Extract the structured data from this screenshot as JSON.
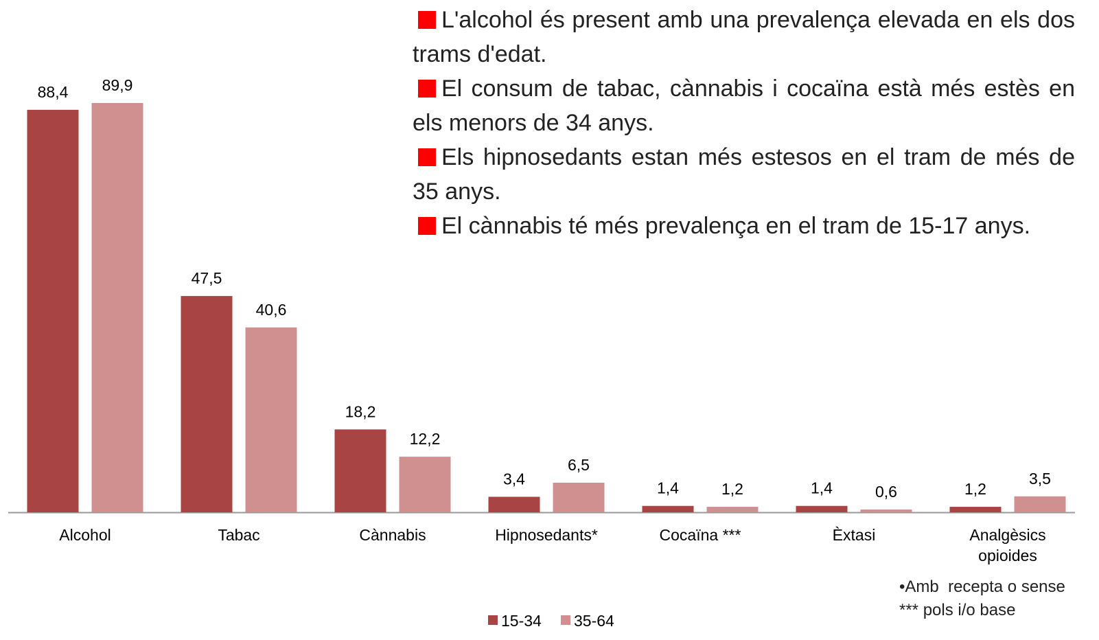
{
  "chart_data": {
    "type": "bar",
    "categories": [
      "Alcohol",
      "Tabac",
      "Cànnabis",
      "Hipnosedants*",
      "Cocaïna ***",
      "Èxtasi",
      "Analgèsics\nopioides"
    ],
    "series": [
      {
        "name": "15-34",
        "color": "#a84444",
        "values": [
          88.4,
          47.5,
          18.2,
          3.4,
          1.4,
          1.4,
          1.2
        ],
        "value_labels": [
          "88,4",
          "47,5",
          "18,2",
          "3,4",
          "1,4",
          "1,4",
          "1,2"
        ]
      },
      {
        "name": "35-64",
        "color": "#d09090",
        "values": [
          89.9,
          40.6,
          12.2,
          6.5,
          1.2,
          0.6,
          3.5
        ],
        "value_labels": [
          "89,9",
          "40,6",
          "12,2",
          "6,5",
          "1,2",
          "0,6",
          "3,5"
        ]
      }
    ],
    "legend": "bottom",
    "annotations": [
      "L'alcohol és present amb una prevalença elevada en els dos trams d'edat.",
      "El consum de tabac, cànnabis i cocaïna està més estès en els menors de 34 anys.",
      "Els hipnosedants estan més estesos en el tram de més de 35 anys.",
      "El cànnabis té més prevalença en el tram de 15-17 anys."
    ],
    "footnotes": [
      "•Amb  recepta o sense",
      "*** pols i/o base"
    ]
  }
}
